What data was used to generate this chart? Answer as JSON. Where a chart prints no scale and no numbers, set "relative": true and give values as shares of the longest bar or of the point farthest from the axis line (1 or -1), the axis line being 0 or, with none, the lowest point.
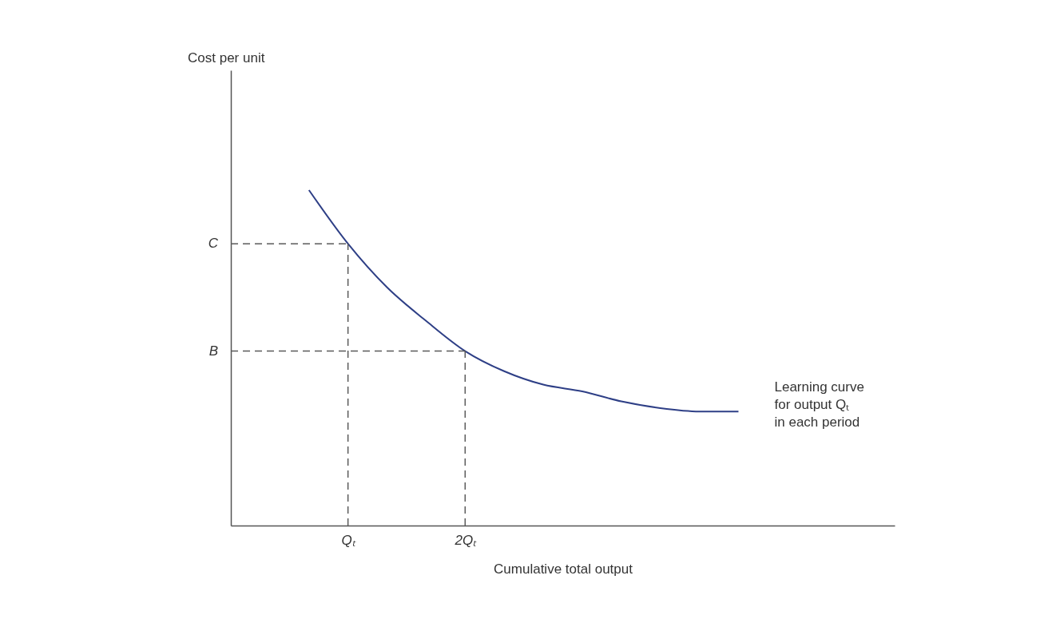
{
  "chart_data": {
    "type": "line",
    "relative": true,
    "xlabel": "Cumulative total output",
    "categories": [
      null,
      null,
      null,
      "Qₜ",
      null,
      null,
      "2Qₜ",
      null,
      null,
      null,
      null,
      null,
      null,
      null,
      null,
      null,
      null,
      null
    ],
    "series": [
      {
        "color": "#2e3f86",
        "values": [
          null,
          null,
          1,
          0.84,
          0.71,
          0.61,
          0.52,
          0.46,
          0.42,
          0.4,
          0.37,
          0.35,
          0.34,
          0.34,
          null,
          null,
          null,
          null
        ]
      }
    ],
    "ref_lines": [
      {
        "axis": "y",
        "value": 0.84,
        "label": "C",
        "color": "#5a5a5a",
        "line_style": "dashed"
      },
      {
        "axis": "y",
        "value": 0.52,
        "label": "B",
        "color": "#5a5a5a",
        "line_style": "dashed"
      },
      {
        "axis": "x",
        "value": "Qₜ",
        "color": "#5a5a5a",
        "line_style": "dashed"
      },
      {
        "axis": "x",
        "value": "2Qₜ",
        "color": "#5a5a5a",
        "line_style": "dashed"
      }
    ],
    "annotations": [
      "Cost per unit",
      "Learning curve\nfor output Qₜ\nin each period"
    ]
  }
}
